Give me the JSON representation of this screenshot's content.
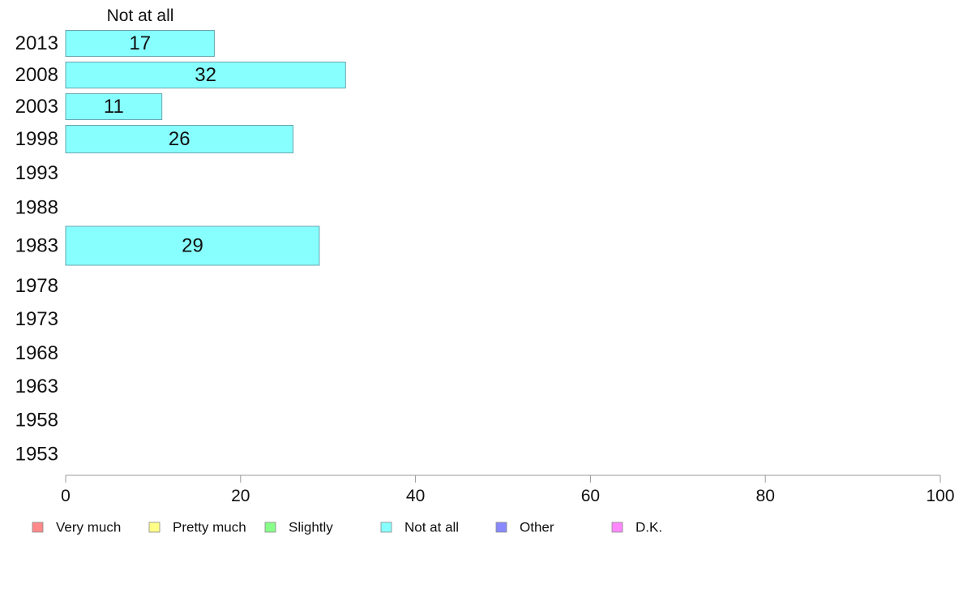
{
  "chart_data": {
    "type": "bar",
    "orientation": "horizontal",
    "series_header": "Not at all",
    "categories": [
      "2013",
      "2008",
      "2003",
      "1998",
      "1993",
      "1988",
      "1983",
      "1978",
      "1973",
      "1968",
      "1963",
      "1958",
      "1953"
    ],
    "series": [
      {
        "name": "Not at all",
        "color": "#88ffff",
        "values": [
          17,
          32,
          11,
          26,
          null,
          null,
          29,
          null,
          null,
          null,
          null,
          null,
          null
        ]
      }
    ],
    "xlim": [
      0,
      100
    ],
    "xticks": [
      0,
      20,
      40,
      60,
      80,
      100
    ],
    "grid": false,
    "legend": {
      "placement": "bottom",
      "items": [
        {
          "label": "Very much",
          "color": "#ff8888"
        },
        {
          "label": "Pretty much",
          "color": "#ffff88"
        },
        {
          "label": "Slightly",
          "color": "#88ff88"
        },
        {
          "label": "Not at all",
          "color": "#88ffff"
        },
        {
          "label": "Other",
          "color": "#8888ff"
        },
        {
          "label": "D.K.",
          "color": "#ff88ff"
        }
      ]
    }
  }
}
